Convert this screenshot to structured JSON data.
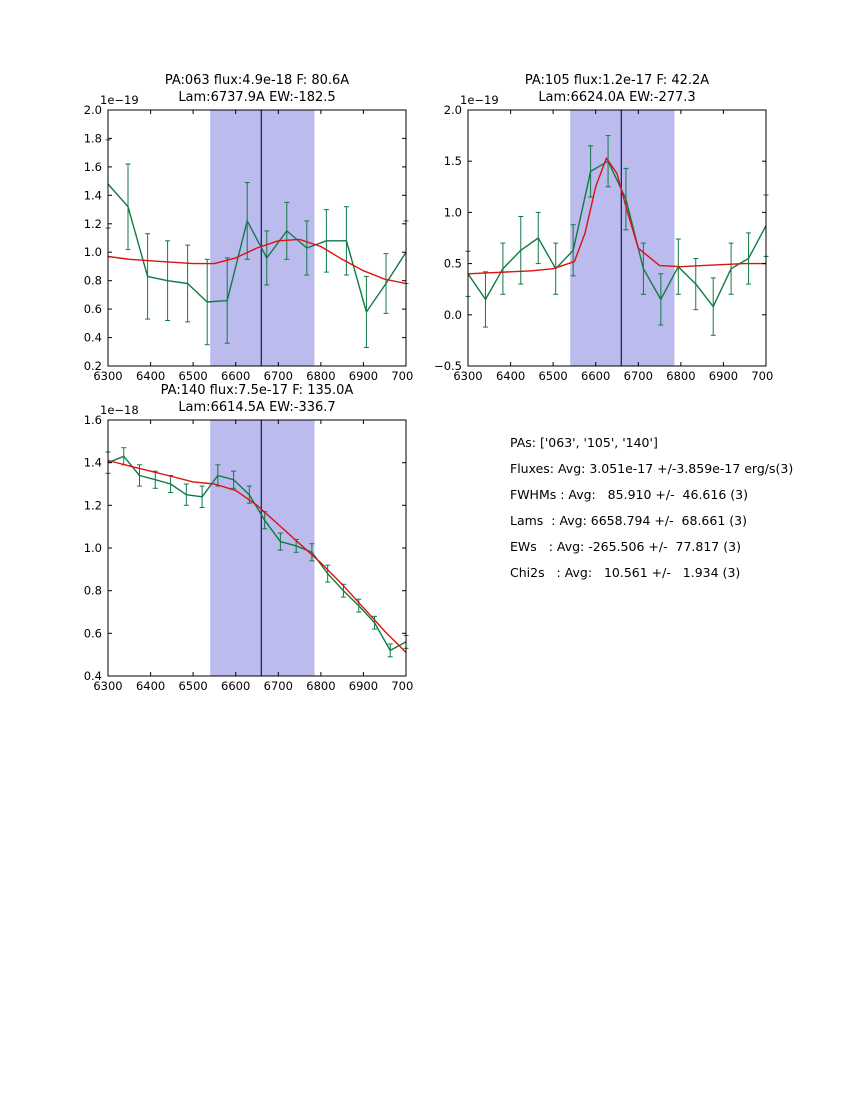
{
  "palette": {
    "data_color": "#107a46",
    "model_color": "#dd1111",
    "band_color": "#bbbbee",
    "vline_color": "#15155e",
    "axis_color": "#000000",
    "text_color": "#000000",
    "background": "#ffffff"
  },
  "chart_data": [
    {
      "type": "line",
      "title_line1": "PA:063 flux:4.9e-18 F: 80.6A",
      "title_line2": "Lam:6737.9A EW:-182.5",
      "offset_label": "1e−19",
      "xlim": [
        6300,
        7000
      ],
      "ylim": [
        0.2,
        2.0
      ],
      "xticks": [
        6300,
        6400,
        6500,
        6600,
        6700,
        6800,
        6900,
        7000
      ],
      "xtick_labels": [
        "6300",
        "6400",
        "6500",
        "6600",
        "6700",
        "6800",
        "6900",
        "7000"
      ],
      "yticks": [
        0.2,
        0.4,
        0.6,
        0.8,
        1.0,
        1.2,
        1.4,
        1.6,
        1.8,
        2.0
      ],
      "ytick_labels": [
        "0.2",
        "0.4",
        "0.6",
        "0.8",
        "1.0",
        "1.2",
        "1.4",
        "1.6",
        "1.8",
        "2.0"
      ],
      "band": [
        6540,
        6785
      ],
      "vline": 6660,
      "grid": false,
      "legend": null,
      "series": [
        {
          "name": "data",
          "x": [
            6300,
            6347,
            6393,
            6440,
            6487,
            6533,
            6580,
            6627,
            6673,
            6720,
            6767,
            6813,
            6860,
            6907,
            6953,
            7000
          ],
          "y": [
            1.48,
            1.32,
            0.83,
            0.8,
            0.78,
            0.65,
            0.66,
            1.22,
            0.96,
            1.15,
            1.03,
            1.08,
            1.08,
            0.58,
            0.78,
            1.0
          ],
          "yerr": [
            0.31,
            0.3,
            0.3,
            0.28,
            0.27,
            0.3,
            0.3,
            0.27,
            0.19,
            0.2,
            0.19,
            0.22,
            0.24,
            0.25,
            0.21,
            0.22
          ]
        },
        {
          "name": "model",
          "x": [
            6300,
            6350,
            6400,
            6450,
            6500,
            6550,
            6600,
            6650,
            6700,
            6750,
            6800,
            6850,
            6900,
            6950,
            7000
          ],
          "y": [
            0.97,
            0.95,
            0.94,
            0.93,
            0.92,
            0.92,
            0.96,
            1.03,
            1.08,
            1.09,
            1.04,
            0.95,
            0.87,
            0.81,
            0.78
          ]
        }
      ]
    },
    {
      "type": "line",
      "title_line1": "PA:105 flux:1.2e-17 F: 42.2A",
      "title_line2": "Lam:6624.0A EW:-277.3",
      "offset_label": "1e−19",
      "xlim": [
        6300,
        7000
      ],
      "ylim": [
        -0.5,
        2.0
      ],
      "xticks": [
        6300,
        6400,
        6500,
        6600,
        6700,
        6800,
        6900,
        7000
      ],
      "xtick_labels": [
        "6300",
        "6400",
        "6500",
        "6600",
        "6700",
        "6800",
        "6900",
        "7000"
      ],
      "yticks": [
        -0.5,
        0.0,
        0.5,
        1.0,
        1.5,
        2.0
      ],
      "ytick_labels": [
        "−0.5",
        "0.0",
        "0.5",
        "1.0",
        "1.5",
        "2.0"
      ],
      "band": [
        6540,
        6785
      ],
      "vline": 6660,
      "grid": false,
      "legend": null,
      "series": [
        {
          "name": "data",
          "x": [
            6300,
            6341,
            6382,
            6424,
            6465,
            6506,
            6547,
            6588,
            6629,
            6671,
            6712,
            6753,
            6794,
            6835,
            6876,
            6918,
            6959,
            7000
          ],
          "y": [
            0.4,
            0.15,
            0.45,
            0.63,
            0.75,
            0.45,
            0.63,
            1.4,
            1.5,
            1.13,
            0.45,
            0.15,
            0.47,
            0.3,
            0.08,
            0.45,
            0.55,
            0.87
          ],
          "yerr": [
            0.22,
            0.27,
            0.25,
            0.33,
            0.25,
            0.25,
            0.25,
            0.25,
            0.25,
            0.3,
            0.25,
            0.25,
            0.27,
            0.25,
            0.28,
            0.25,
            0.25,
            0.3
          ]
        },
        {
          "name": "model",
          "x": [
            6300,
            6350,
            6400,
            6450,
            6500,
            6550,
            6575,
            6600,
            6625,
            6650,
            6675,
            6700,
            6750,
            6800,
            6850,
            6900,
            6950,
            7000
          ],
          "y": [
            0.4,
            0.41,
            0.42,
            0.43,
            0.45,
            0.52,
            0.8,
            1.25,
            1.53,
            1.38,
            1.0,
            0.65,
            0.48,
            0.47,
            0.48,
            0.49,
            0.5,
            0.5
          ]
        }
      ]
    },
    {
      "type": "line",
      "title_line1": "PA:140 flux:7.5e-17 F: 135.0A",
      "title_line2": "Lam:6614.5A EW:-336.7",
      "offset_label": "1e−18",
      "xlim": [
        6300,
        7000
      ],
      "ylim": [
        0.4,
        1.6
      ],
      "xticks": [
        6300,
        6400,
        6500,
        6600,
        6700,
        6800,
        6900,
        7000
      ],
      "xtick_labels": [
        "6300",
        "6400",
        "6500",
        "6600",
        "6700",
        "6800",
        "6900",
        "7000"
      ],
      "yticks": [
        0.4,
        0.6,
        0.8,
        1.0,
        1.2,
        1.4,
        1.6
      ],
      "ytick_labels": [
        "0.4",
        "0.6",
        "0.8",
        "1.0",
        "1.2",
        "1.4",
        "1.6"
      ],
      "band": [
        6540,
        6785
      ],
      "vline": 6660,
      "grid": false,
      "legend": null,
      "series": [
        {
          "name": "data",
          "x": [
            6300,
            6337,
            6374,
            6411,
            6447,
            6484,
            6521,
            6558,
            6595,
            6632,
            6668,
            6705,
            6742,
            6779,
            6816,
            6853,
            6889,
            6926,
            6963,
            7000
          ],
          "y": [
            1.4,
            1.43,
            1.34,
            1.32,
            1.3,
            1.25,
            1.24,
            1.34,
            1.32,
            1.25,
            1.13,
            1.03,
            1.01,
            0.98,
            0.88,
            0.8,
            0.73,
            0.65,
            0.52,
            0.56
          ],
          "yerr": [
            0.05,
            0.04,
            0.05,
            0.04,
            0.04,
            0.05,
            0.05,
            0.05,
            0.04,
            0.04,
            0.04,
            0.04,
            0.03,
            0.04,
            0.04,
            0.03,
            0.03,
            0.03,
            0.03,
            0.03
          ]
        },
        {
          "name": "model",
          "x": [
            6300,
            6350,
            6400,
            6450,
            6500,
            6550,
            6600,
            6650,
            6700,
            6750,
            6800,
            6850,
            6900,
            6950,
            7000
          ],
          "y": [
            1.41,
            1.385,
            1.36,
            1.335,
            1.31,
            1.3,
            1.27,
            1.2,
            1.11,
            1.02,
            0.93,
            0.83,
            0.72,
            0.61,
            0.51
          ]
        }
      ]
    }
  ],
  "stats_panel": {
    "lines": [
      "PAs: ['063', '105', '140']",
      "Fluxes: Avg: 3.051e-17 +/-3.859e-17 erg/s(3)",
      "FWHMs : Avg:   85.910 +/-  46.616 (3)",
      "Lams  : Avg: 6658.794 +/-  68.661 (3)",
      "EWs   : Avg: -265.506 +/-  77.817 (3)",
      "Chi2s   : Avg:   10.561 +/-   1.934 (3)"
    ]
  }
}
